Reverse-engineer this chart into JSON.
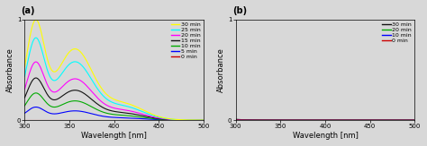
{
  "title_a": "(a)",
  "title_b": "(b)",
  "xlabel": "Wavelength [nm]",
  "ylabel": "Absorbance",
  "xlim": [
    300,
    500
  ],
  "ylim_a": [
    0,
    1
  ],
  "ylim_b": [
    0,
    1
  ],
  "xticks": [
    300,
    350,
    400,
    450,
    500
  ],
  "yticks_a": [
    0,
    1
  ],
  "yticks_b": [
    0,
    1
  ],
  "legend_a_labels": [
    "30 min",
    "25 min",
    "20 min",
    "15 min",
    "10 min",
    "5 min",
    "0 min"
  ],
  "legend_a_colors": [
    "#ffff00",
    "#00ffff",
    "#ff00ff",
    "#111111",
    "#00aa00",
    "#0000ff",
    "#cc0000"
  ],
  "legend_b_labels": [
    "30 min",
    "20 min",
    "10 min",
    "0 min"
  ],
  "legend_b_colors": [
    "#111111",
    "#00aa00",
    "#0000ff",
    "#cc0000"
  ],
  "bg_color": "#d8d8d8",
  "scales_a": [
    1.0,
    0.82,
    0.58,
    0.42,
    0.27,
    0.13,
    0.0
  ],
  "scales_b": [
    0.008,
    0.006,
    0.004,
    0.002
  ],
  "peak1_wl": 312,
  "peak1_sigma": 14,
  "peak2_wl": 356,
  "peak2_sigma": 28,
  "peak2_rel": 0.78,
  "peak3_wl": 410,
  "peak3_sigma": 32,
  "peak3_rel": 0.18,
  "bg_amp": 0.12,
  "bg_decay": 40,
  "font_size_tick": 5,
  "font_size_label": 6,
  "font_size_legend": 4.5,
  "font_size_panel": 7,
  "linewidth": 0.8
}
